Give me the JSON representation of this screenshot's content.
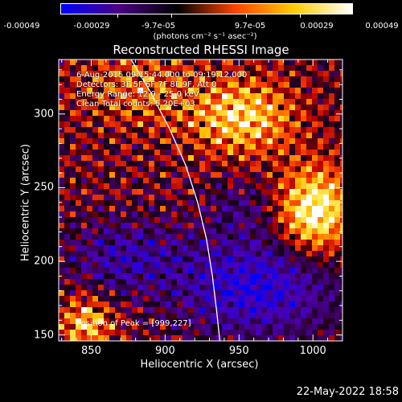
{
  "colorbar": {
    "tick_labels": [
      "-0.00049",
      "-0.00029",
      "-9.7e-05",
      "9.7e-05",
      "0.00029",
      "0.00049"
    ],
    "unit": "(photons cm⁻² s⁻¹ asec⁻²)",
    "colors": [
      "#0000ff",
      "#4b0082",
      "#000000",
      "#ff4500",
      "#ffcc00",
      "#ffffff"
    ]
  },
  "chart_data": {
    "type": "heatmap",
    "title": "Reconstructed RHESSI Image",
    "xlabel": "Heliocentric X (arcsec)",
    "ylabel": "Heliocentric Y (arcsec)",
    "xlim": [
      828,
      1020
    ],
    "ylim": [
      146,
      337
    ],
    "x_ticks": [
      850,
      900,
      950,
      1000
    ],
    "y_ticks": [
      150,
      200,
      250,
      300
    ],
    "limb_curve": [
      [
        877,
        337
      ],
      [
        890,
        315
      ],
      [
        903,
        290
      ],
      [
        914,
        265
      ],
      [
        922,
        240
      ],
      [
        928,
        215
      ],
      [
        932,
        190
      ],
      [
        935,
        165
      ],
      [
        937,
        146
      ]
    ],
    "annotations": [
      "6-Aug-2015 09:15:44.000 to 09:19:12.000",
      "Detectors: 3F 5F 6F 7F 8F 9F, Att 0",
      "Energy Range: 12.0 - 25.0 keV",
      "Clean    Total counts: 5.20E+03"
    ],
    "peak_label": "Position of Peak = [999,227]",
    "peak": [
      999,
      227
    ]
  },
  "timestamp": "22-May-2022 18:58"
}
